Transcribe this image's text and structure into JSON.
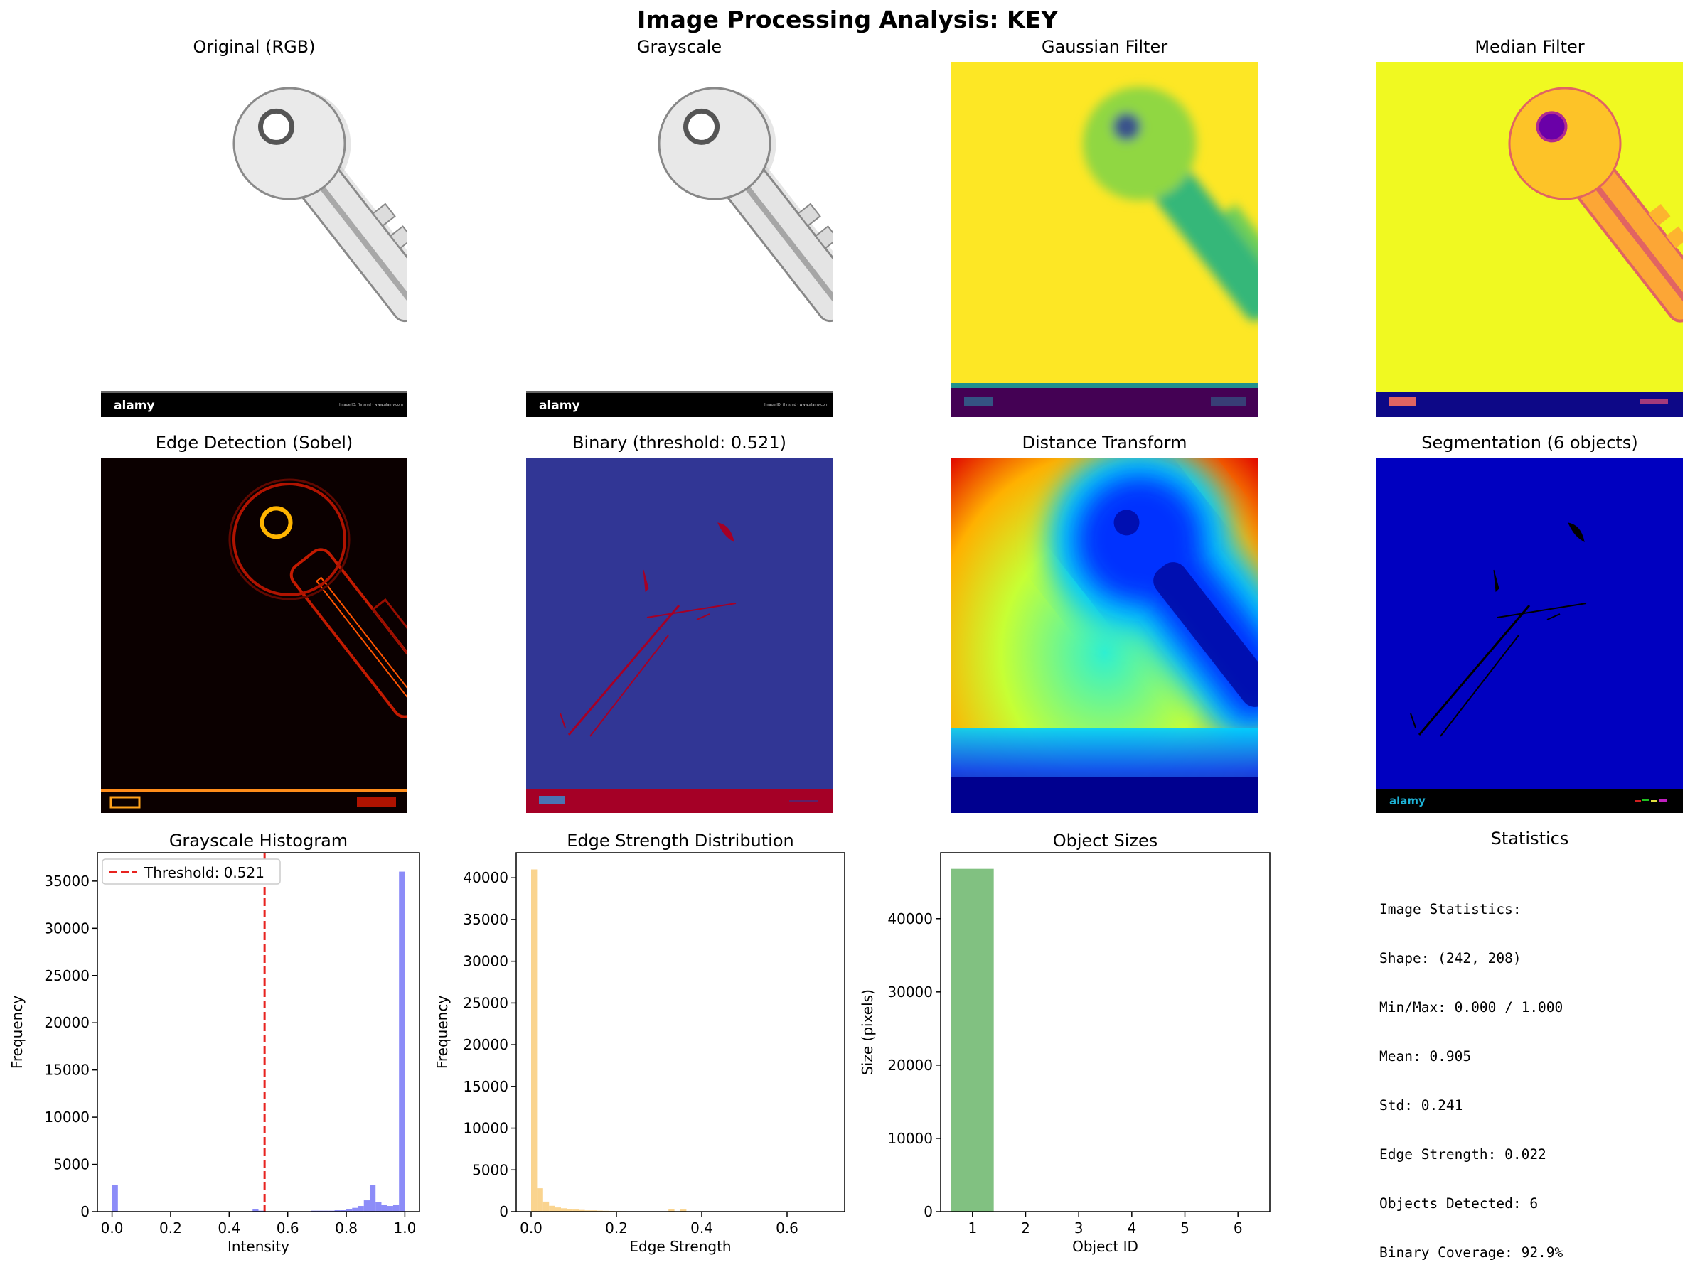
{
  "figure": {
    "title": "Image Processing Analysis: KEY"
  },
  "panels": {
    "original": "Original (RGB)",
    "grayscale": "Grayscale",
    "gaussian": "Gaussian Filter",
    "median": "Median Filter",
    "edge": "Edge Detection (Sobel)",
    "binary": "Binary (threshold: 0.521)",
    "distance": "Distance Transform",
    "segmentation": "Segmentation (6 objects)"
  },
  "watermark": {
    "brand": "alamy",
    "small": "Image ID: fhnsmd · www.alamy.com"
  },
  "colors": {
    "hist_bar": "#5b5bf5",
    "threshold_line": "#e8231f",
    "edge_bar": "#f8c260",
    "object_bar": "#4ca64c",
    "gaussian_bg": "#fde725",
    "median_bg": "#f0f921",
    "binary_bg": "#313695",
    "binary_fg": "#a50026",
    "segmentation_bg": "#0000c0"
  },
  "statistics": {
    "title": "Statistics",
    "lines": [
      "Image Statistics:",
      "Shape: (242, 208)",
      "Min/Max: 0.000 / 1.000",
      "Mean: 0.905",
      "Std: 0.241",
      "Edge Strength: 0.022",
      "Objects Detected: 6",
      "Binary Coverage: 92.9%"
    ]
  },
  "chart_data": [
    {
      "type": "bar",
      "title": "Grayscale Histogram",
      "xlabel": "Intensity",
      "ylabel": "Frequency",
      "xlim": [
        -0.05,
        1.05
      ],
      "ylim": [
        0,
        38000
      ],
      "xticks": [
        0.0,
        0.2,
        0.4,
        0.6,
        0.8,
        1.0
      ],
      "xtick_labels": [
        "0.0",
        "0.2",
        "0.4",
        "0.6",
        "0.8",
        "1.0"
      ],
      "yticks": [
        0,
        5000,
        10000,
        15000,
        20000,
        25000,
        30000,
        35000
      ],
      "bins": {
        "start": 0.0,
        "width": 0.02
      },
      "values": [
        2800,
        0,
        0,
        0,
        0,
        0,
        0,
        0,
        0,
        0,
        0,
        0,
        0,
        0,
        0,
        0,
        0,
        0,
        0,
        0,
        0,
        0,
        0,
        0,
        300,
        100,
        0,
        0,
        0,
        0,
        0,
        0,
        0,
        0,
        100,
        100,
        100,
        100,
        150,
        150,
        300,
        400,
        600,
        1200,
        2800,
        1000,
        700,
        600,
        700,
        36000
      ],
      "threshold": {
        "value": 0.521,
        "label": "Threshold: 0.521"
      },
      "legend_position": "upper left"
    },
    {
      "type": "bar",
      "title": "Edge Strength Distribution",
      "xlabel": "Edge Strength",
      "ylabel": "Frequency",
      "xlim": [
        -0.035,
        0.735
      ],
      "ylim": [
        0,
        43000
      ],
      "xticks": [
        0.0,
        0.2,
        0.4,
        0.6
      ],
      "xtick_labels": [
        "0.0",
        "0.2",
        "0.4",
        "0.6"
      ],
      "yticks": [
        0,
        5000,
        10000,
        15000,
        20000,
        25000,
        30000,
        35000,
        40000
      ],
      "bins": {
        "start": 0.0,
        "width": 0.014
      },
      "values": [
        41000,
        2800,
        1200,
        700,
        500,
        400,
        300,
        250,
        200,
        150,
        150,
        120,
        100,
        80,
        60,
        50,
        40,
        30,
        30,
        20,
        20,
        15,
        10,
        300,
        20,
        250,
        10,
        10,
        10,
        10,
        10,
        10,
        10,
        10,
        10,
        10,
        10,
        10,
        10,
        10,
        10,
        10,
        10,
        10,
        10,
        10,
        10,
        10,
        10,
        10
      ]
    },
    {
      "type": "bar",
      "title": "Object Sizes",
      "xlabel": "Object ID",
      "ylabel": "Size (pixels)",
      "xlim": [
        0.4,
        6.6
      ],
      "ylim": [
        0,
        49000
      ],
      "categories": [
        1,
        2,
        3,
        4,
        5,
        6
      ],
      "values": [
        46800,
        15,
        12,
        10,
        8,
        5
      ],
      "yticks": [
        0,
        10000,
        20000,
        30000,
        40000
      ]
    }
  ]
}
